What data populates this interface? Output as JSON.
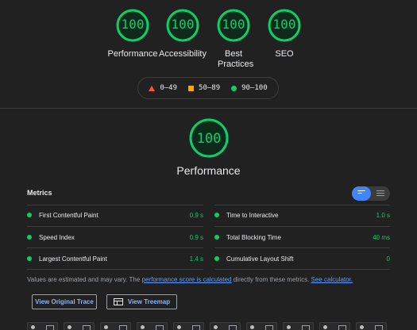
{
  "categories": [
    {
      "score": "100",
      "label": "Performance"
    },
    {
      "score": "100",
      "label": "Accessibility"
    },
    {
      "score": "100",
      "label": "Best Practices"
    },
    {
      "score": "100",
      "label": "SEO"
    }
  ],
  "legend": {
    "fail": "0–49",
    "average": "50–89",
    "pass": "90–100"
  },
  "performance": {
    "score": "100",
    "title": "Performance"
  },
  "metrics": {
    "title": "Metrics",
    "items": [
      {
        "name": "First Contentful Paint",
        "value": "0.9 s"
      },
      {
        "name": "Time to Interactive",
        "value": "1.0 s"
      },
      {
        "name": "Speed Index",
        "value": "0.9 s"
      },
      {
        "name": "Total Blocking Time",
        "value": "40 ms"
      },
      {
        "name": "Largest Contentful Paint",
        "value": "1.4 s"
      },
      {
        "name": "Cumulative Layout Shift",
        "value": "0"
      }
    ]
  },
  "note": {
    "prefix": "Values are estimated and may vary. The",
    "link1": "performance score is calculated",
    "middle": "directly from these metrics.",
    "link2": "See calculator."
  },
  "buttons": {
    "trace": "View Original Trace",
    "treemap": "View Treemap"
  },
  "colors": {
    "pass": "#0cce6b",
    "average": "#ffa400",
    "fail": "#ff4e42",
    "accent": "#4285f4"
  }
}
